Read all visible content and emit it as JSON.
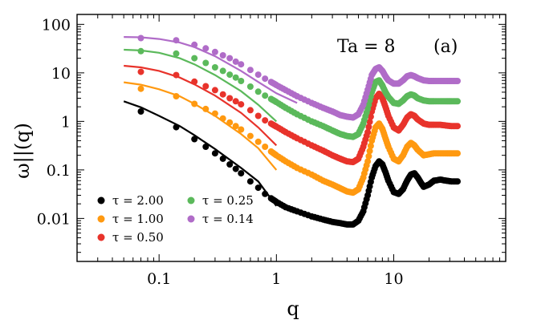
{
  "chart_data": {
    "type": "scatter",
    "xscale": "log",
    "yscale": "log",
    "xlim": [
      0.02,
      90
    ],
    "ylim": [
      0.0013,
      160
    ],
    "xticks": [
      0.1,
      1,
      10
    ],
    "xtick_labels": [
      "0.1",
      "1",
      "10"
    ],
    "yticks": [
      0.01,
      0.1,
      1,
      10,
      100
    ],
    "ytick_labels": [
      "0.01",
      "0.1",
      "1",
      "10",
      "100"
    ],
    "xlabel": "q",
    "ylabel": "ω||(q)",
    "annotation_param": "Ta = 8",
    "panel_label": "(a)",
    "legend_position": "bottom-left",
    "grid": false,
    "series": [
      {
        "name": "τ = 2.00",
        "color": "#000000",
        "points": [
          [
            0.07,
            1.6
          ],
          [
            0.14,
            0.76
          ],
          [
            0.2,
            0.43
          ],
          [
            0.25,
            0.3
          ],
          [
            0.3,
            0.22
          ],
          [
            0.35,
            0.17
          ],
          [
            0.4,
            0.13
          ],
          [
            0.45,
            0.105
          ],
          [
            0.5,
            0.085
          ],
          [
            0.6,
            0.058
          ],
          [
            0.7,
            0.043
          ],
          [
            0.8,
            0.032
          ],
          [
            0.9,
            0.026
          ],
          [
            1,
            0.022
          ],
          [
            1.2,
            0.017
          ],
          [
            1.5,
            0.014
          ],
          [
            2,
            0.011
          ],
          [
            2.5,
            0.0095
          ],
          [
            3,
            0.0085
          ],
          [
            3.5,
            0.008
          ],
          [
            4,
            0.0075
          ],
          [
            4.5,
            0.0075
          ],
          [
            5,
            0.009
          ],
          [
            5.5,
            0.014
          ],
          [
            6,
            0.03
          ],
          [
            6.5,
            0.07
          ],
          [
            7,
            0.12
          ],
          [
            7.5,
            0.15
          ],
          [
            8,
            0.13
          ],
          [
            8.5,
            0.09
          ],
          [
            9,
            0.06
          ],
          [
            10,
            0.035
          ],
          [
            11,
            0.032
          ],
          [
            12,
            0.04
          ],
          [
            13,
            0.06
          ],
          [
            14,
            0.08
          ],
          [
            15,
            0.085
          ],
          [
            16,
            0.07
          ],
          [
            17,
            0.055
          ],
          [
            18,
            0.045
          ],
          [
            20,
            0.05
          ],
          [
            22,
            0.06
          ],
          [
            25,
            0.063
          ],
          [
            28,
            0.06
          ],
          [
            31,
            0.058
          ],
          [
            35,
            0.058
          ]
        ],
        "fit": [
          [
            0.05,
            2.6
          ],
          [
            0.07,
            1.95
          ],
          [
            0.1,
            1.3
          ],
          [
            0.15,
            0.8
          ],
          [
            0.2,
            0.52
          ],
          [
            0.3,
            0.27
          ],
          [
            0.5,
            0.11
          ],
          [
            0.7,
            0.058
          ],
          [
            1,
            0.018
          ]
        ]
      },
      {
        "name": "τ = 1.00",
        "color": "#ff9910",
        "points": [
          [
            0.07,
            4.7
          ],
          [
            0.14,
            3.3
          ],
          [
            0.2,
            2.3
          ],
          [
            0.25,
            1.8
          ],
          [
            0.3,
            1.45
          ],
          [
            0.35,
            1.15
          ],
          [
            0.4,
            0.95
          ],
          [
            0.45,
            0.8
          ],
          [
            0.5,
            0.68
          ],
          [
            0.6,
            0.5
          ],
          [
            0.7,
            0.38
          ],
          [
            0.8,
            0.3
          ],
          [
            0.9,
            0.24
          ],
          [
            1,
            0.2
          ],
          [
            1.2,
            0.15
          ],
          [
            1.5,
            0.11
          ],
          [
            2,
            0.08
          ],
          [
            2.5,
            0.06
          ],
          [
            3,
            0.05
          ],
          [
            3.5,
            0.042
          ],
          [
            4,
            0.036
          ],
          [
            4.5,
            0.034
          ],
          [
            5,
            0.04
          ],
          [
            5.5,
            0.07
          ],
          [
            6,
            0.15
          ],
          [
            6.5,
            0.4
          ],
          [
            7,
            0.75
          ],
          [
            7.5,
            0.9
          ],
          [
            8,
            0.7
          ],
          [
            8.5,
            0.45
          ],
          [
            9,
            0.3
          ],
          [
            10,
            0.17
          ],
          [
            11,
            0.15
          ],
          [
            12,
            0.2
          ],
          [
            13,
            0.3
          ],
          [
            14,
            0.36
          ],
          [
            15,
            0.32
          ],
          [
            16,
            0.26
          ],
          [
            18,
            0.2
          ],
          [
            20,
            0.21
          ],
          [
            22,
            0.22
          ],
          [
            25,
            0.22
          ],
          [
            28,
            0.22
          ],
          [
            31,
            0.22
          ],
          [
            35,
            0.22
          ]
        ],
        "fit": [
          [
            0.05,
            6.4
          ],
          [
            0.07,
            5.7
          ],
          [
            0.1,
            4.6
          ],
          [
            0.15,
            3.3
          ],
          [
            0.2,
            2.3
          ],
          [
            0.3,
            1.3
          ],
          [
            0.5,
            0.55
          ],
          [
            0.7,
            0.28
          ],
          [
            1,
            0.1
          ]
        ]
      },
      {
        "name": "τ = 0.50",
        "color": "#e8332b",
        "points": [
          [
            0.07,
            10.5
          ],
          [
            0.14,
            9.0
          ],
          [
            0.2,
            6.6
          ],
          [
            0.25,
            5.3
          ],
          [
            0.3,
            4.4
          ],
          [
            0.35,
            3.6
          ],
          [
            0.4,
            3.0
          ],
          [
            0.45,
            2.6
          ],
          [
            0.5,
            2.25
          ],
          [
            0.6,
            1.7
          ],
          [
            0.7,
            1.3
          ],
          [
            0.8,
            1.05
          ],
          [
            0.9,
            0.9
          ],
          [
            1,
            0.78
          ],
          [
            1.2,
            0.6
          ],
          [
            1.5,
            0.45
          ],
          [
            2,
            0.32
          ],
          [
            2.5,
            0.25
          ],
          [
            3,
            0.2
          ],
          [
            3.5,
            0.17
          ],
          [
            4,
            0.15
          ],
          [
            4.5,
            0.145
          ],
          [
            5,
            0.17
          ],
          [
            5.5,
            0.3
          ],
          [
            6,
            0.6
          ],
          [
            6.5,
            1.6
          ],
          [
            7,
            3.0
          ],
          [
            7.5,
            3.7
          ],
          [
            8,
            3.0
          ],
          [
            8.5,
            2.0
          ],
          [
            9,
            1.3
          ],
          [
            10,
            0.75
          ],
          [
            11,
            0.65
          ],
          [
            12,
            0.85
          ],
          [
            13,
            1.2
          ],
          [
            14,
            1.4
          ],
          [
            15,
            1.3
          ],
          [
            16,
            1.1
          ],
          [
            18,
            0.9
          ],
          [
            20,
            0.85
          ],
          [
            22,
            0.85
          ],
          [
            25,
            0.85
          ],
          [
            28,
            0.82
          ],
          [
            31,
            0.8
          ],
          [
            35,
            0.8
          ]
        ],
        "fit": [
          [
            0.05,
            14
          ],
          [
            0.07,
            13
          ],
          [
            0.1,
            11
          ],
          [
            0.15,
            8
          ],
          [
            0.2,
            5.8
          ],
          [
            0.3,
            3.4
          ],
          [
            0.5,
            1.5
          ],
          [
            0.7,
            0.75
          ],
          [
            1,
            0.32
          ]
        ]
      },
      {
        "name": "τ = 0.25",
        "color": "#5bb95b",
        "points": [
          [
            0.07,
            28
          ],
          [
            0.14,
            25
          ],
          [
            0.2,
            20
          ],
          [
            0.25,
            16
          ],
          [
            0.3,
            13
          ],
          [
            0.35,
            11
          ],
          [
            0.4,
            9.2
          ],
          [
            0.45,
            8
          ],
          [
            0.5,
            6.8
          ],
          [
            0.6,
            5.2
          ],
          [
            0.7,
            4.1
          ],
          [
            0.8,
            3.4
          ],
          [
            0.9,
            2.9
          ],
          [
            1,
            2.5
          ],
          [
            1.2,
            1.9
          ],
          [
            1.5,
            1.4
          ],
          [
            2,
            1.0
          ],
          [
            2.5,
            0.8
          ],
          [
            3,
            0.65
          ],
          [
            3.5,
            0.55
          ],
          [
            4,
            0.5
          ],
          [
            4.5,
            0.48
          ],
          [
            5,
            0.55
          ],
          [
            5.5,
            0.9
          ],
          [
            6,
            1.8
          ],
          [
            6.5,
            4
          ],
          [
            7,
            6.5
          ],
          [
            7.5,
            7
          ],
          [
            8,
            5.5
          ],
          [
            8.5,
            4
          ],
          [
            9,
            3.2
          ],
          [
            10,
            2.4
          ],
          [
            11,
            2.3
          ],
          [
            12,
            2.7
          ],
          [
            13,
            3.3
          ],
          [
            14,
            3.6
          ],
          [
            15,
            3.4
          ],
          [
            16,
            3.0
          ],
          [
            18,
            2.7
          ],
          [
            20,
            2.6
          ],
          [
            22,
            2.6
          ],
          [
            25,
            2.6
          ],
          [
            28,
            2.6
          ],
          [
            31,
            2.6
          ],
          [
            35,
            2.6
          ]
        ],
        "fit": [
          [
            0.05,
            30
          ],
          [
            0.07,
            29
          ],
          [
            0.1,
            26
          ],
          [
            0.15,
            20
          ],
          [
            0.2,
            15
          ],
          [
            0.3,
            9
          ],
          [
            0.5,
            4.2
          ],
          [
            0.7,
            2.2
          ],
          [
            1,
            1.0
          ]
        ]
      },
      {
        "name": "τ = 0.14",
        "color": "#b06cc8",
        "points": [
          [
            0.07,
            52
          ],
          [
            0.14,
            47
          ],
          [
            0.2,
            38
          ],
          [
            0.25,
            32
          ],
          [
            0.3,
            27
          ],
          [
            0.35,
            23
          ],
          [
            0.4,
            20
          ],
          [
            0.45,
            17
          ],
          [
            0.5,
            15
          ],
          [
            0.6,
            11.5
          ],
          [
            0.7,
            9.2
          ],
          [
            0.8,
            7.6
          ],
          [
            0.9,
            6.5
          ],
          [
            1,
            5.6
          ],
          [
            1.2,
            4.4
          ],
          [
            1.5,
            3.3
          ],
          [
            2,
            2.4
          ],
          [
            2.5,
            1.9
          ],
          [
            3,
            1.6
          ],
          [
            3.5,
            1.35
          ],
          [
            4,
            1.25
          ],
          [
            4.5,
            1.2
          ],
          [
            5,
            1.4
          ],
          [
            5.5,
            2.2
          ],
          [
            6,
            4.5
          ],
          [
            6.5,
            9
          ],
          [
            7,
            12
          ],
          [
            7.5,
            13
          ],
          [
            8,
            11
          ],
          [
            8.5,
            8.5
          ],
          [
            9,
            7
          ],
          [
            10,
            6
          ],
          [
            11,
            6
          ],
          [
            12,
            7
          ],
          [
            13,
            8.5
          ],
          [
            14,
            9
          ],
          [
            15,
            8.5
          ],
          [
            16,
            7.8
          ],
          [
            18,
            7
          ],
          [
            20,
            6.8
          ],
          [
            22,
            6.8
          ],
          [
            25,
            6.8
          ],
          [
            28,
            6.8
          ],
          [
            31,
            6.8
          ],
          [
            35,
            6.8
          ]
        ],
        "fit": [
          [
            0.05,
            55
          ],
          [
            0.07,
            54
          ],
          [
            0.1,
            50
          ],
          [
            0.15,
            42
          ],
          [
            0.2,
            34
          ],
          [
            0.3,
            22
          ],
          [
            0.5,
            11
          ],
          [
            0.7,
            6.5
          ],
          [
            1,
            3.8
          ],
          [
            1.5,
            2.4
          ]
        ]
      }
    ]
  }
}
